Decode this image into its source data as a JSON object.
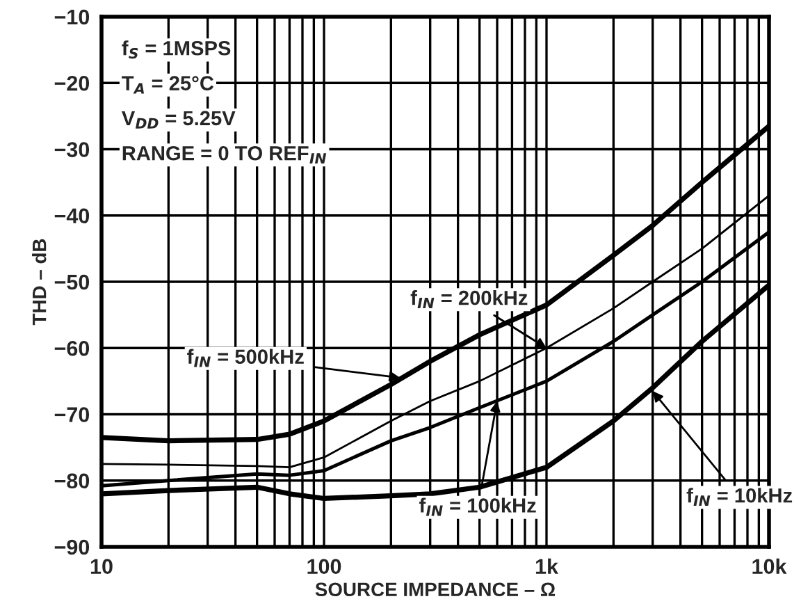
{
  "chart_data": {
    "type": "line",
    "xlabel": "SOURCE IMPEDANCE – Ω",
    "ylabel": "THD – dB",
    "log": "x",
    "grid": true,
    "marker": "none",
    "line_style": "solid",
    "xlim": [
      10,
      10000
    ],
    "ylim": [
      -90,
      -10
    ],
    "xticks": [
      {
        "value": 10,
        "label": "10"
      },
      {
        "value": 20,
        "label": null
      },
      {
        "value": 30,
        "label": null
      },
      {
        "value": 40,
        "label": null
      },
      {
        "value": 50,
        "label": null
      },
      {
        "value": 60,
        "label": null
      },
      {
        "value": 70,
        "label": null
      },
      {
        "value": 80,
        "label": null
      },
      {
        "value": 90,
        "label": null
      },
      {
        "value": 100,
        "label": "100"
      },
      {
        "value": 200,
        "label": null
      },
      {
        "value": 300,
        "label": null
      },
      {
        "value": 400,
        "label": null
      },
      {
        "value": 500,
        "label": null
      },
      {
        "value": 600,
        "label": null
      },
      {
        "value": 700,
        "label": null
      },
      {
        "value": 800,
        "label": null
      },
      {
        "value": 900,
        "label": null
      },
      {
        "value": 1000,
        "label": "1k"
      },
      {
        "value": 2000,
        "label": null
      },
      {
        "value": 3000,
        "label": null
      },
      {
        "value": 4000,
        "label": null
      },
      {
        "value": 5000,
        "label": null
      },
      {
        "value": 6000,
        "label": null
      },
      {
        "value": 7000,
        "label": null
      },
      {
        "value": 8000,
        "label": null
      },
      {
        "value": 9000,
        "label": null
      },
      {
        "value": 10000,
        "label": "10k"
      }
    ],
    "yticks": [
      {
        "value": -90,
        "label": "−90"
      },
      {
        "value": -80,
        "label": "−80"
      },
      {
        "value": -70,
        "label": "−70"
      },
      {
        "value": -60,
        "label": "−60"
      },
      {
        "value": -50,
        "label": "−50"
      },
      {
        "value": -40,
        "label": "−40"
      },
      {
        "value": -30,
        "label": "−30"
      },
      {
        "value": -20,
        "label": "−20"
      },
      {
        "value": -10,
        "label": "−10"
      }
    ],
    "x": [
      10,
      20,
      50,
      70,
      100,
      200,
      300,
      500,
      1000,
      2000,
      3000,
      5000,
      10000
    ],
    "series": [
      {
        "color": "#000000",
        "values": [
          -73.5,
          -74,
          -73.8,
          -73,
          -71,
          -65.5,
          -62,
          -58,
          -53.5,
          -46,
          -41.5,
          -35,
          -26.5
        ]
      },
      {
        "color": "#000000",
        "values": [
          -77.5,
          -77.6,
          -77.8,
          -78,
          -76.5,
          -71,
          -68,
          -65,
          -60,
          -54,
          -50,
          -45,
          -37
        ]
      },
      {
        "color": "#000000",
        "values": [
          -80.8,
          -80,
          -79,
          -79.2,
          -78.5,
          -74,
          -72,
          -69,
          -65,
          -59,
          -55,
          -50,
          -42.5
        ]
      },
      {
        "color": "#000000",
        "values": [
          -82,
          -81.5,
          -81,
          -82,
          -82.7,
          -82.3,
          -82,
          -81,
          -78,
          -71,
          -66,
          -59,
          -50.5
        ]
      }
    ],
    "annotations": [
      "f$_{S}$ = 1MSPS",
      "T$_{A}$ = 25°C",
      "V$_{DD}$ = 5.25V",
      "RANGE = 0 TO REF$_{IN}$",
      {
        "text": "f$_{IN}$ = 500kHz",
        "x": 220,
        "y": -64.5
      },
      {
        "text": "f$_{IN}$ = 200kHz",
        "x": 1000,
        "y": -60
      },
      {
        "text": "f$_{IN}$ = 100kHz",
        "x": 600,
        "y": -68
      },
      {
        "text": "f$_{IN}$ = 10kHz",
        "x": 3000,
        "y": -66.5
      }
    ]
  }
}
